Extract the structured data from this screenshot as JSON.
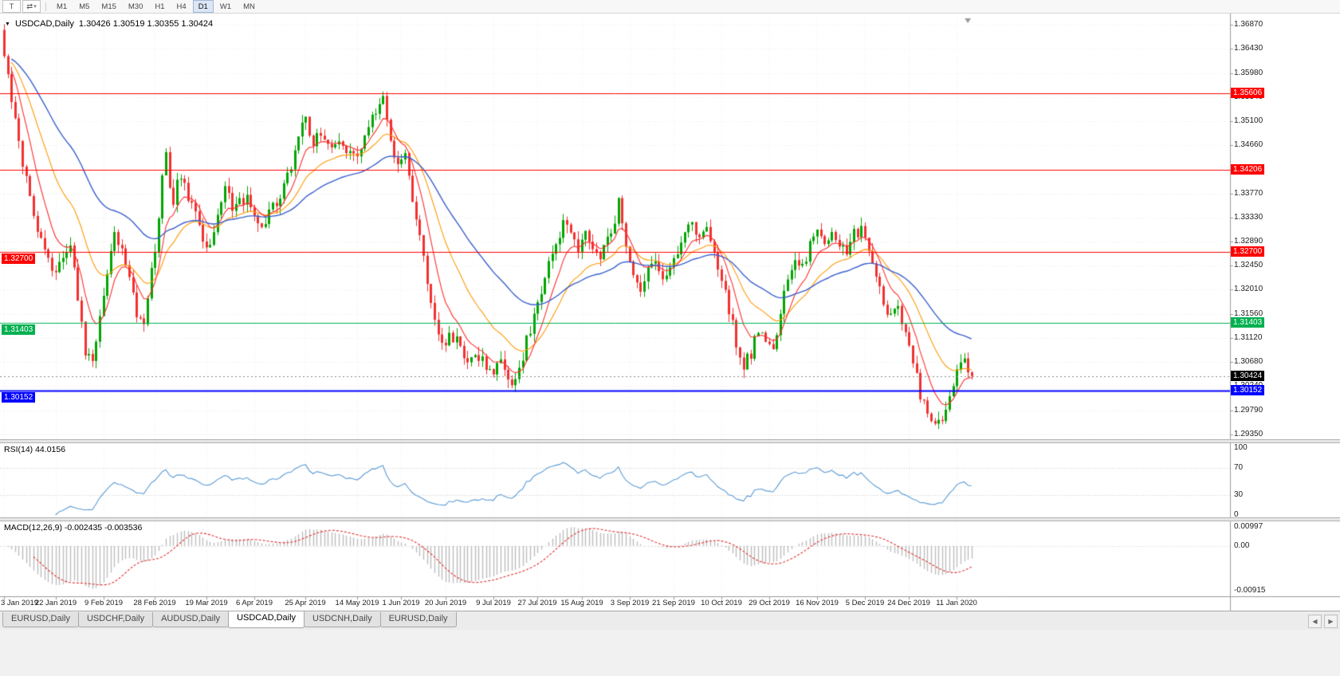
{
  "toolbar": {
    "tool_buttons": [
      {
        "label": "T"
      },
      {
        "label": "⇄"
      }
    ],
    "dropdown_glyph": "▾",
    "timeframes": [
      "M1",
      "M5",
      "M15",
      "M30",
      "H1",
      "H4",
      "D1",
      "W1",
      "MN"
    ],
    "active_timeframe": "D1"
  },
  "header": {
    "collapse_glyph": "▼",
    "symbol": "USDCAD,Daily",
    "ohlc": "1.30426 1.30519 1.30355 1.30424"
  },
  "price_axis": {
    "ticks": [
      "1.36870",
      "1.36430",
      "1.35980",
      "1.35540",
      "1.35100",
      "1.34660",
      "1.33770",
      "1.33330",
      "1.32890",
      "1.32450",
      "1.32010",
      "1.31560",
      "1.31120",
      "1.30680",
      "1.30240",
      "1.29790",
      "1.29350"
    ],
    "top_value": 1.3687,
    "bottom_value": 1.2935
  },
  "date_axis": {
    "ticks": [
      {
        "label": "3 Jan 2019",
        "index": 0
      },
      {
        "label": "22 Jan 2019",
        "index": 14
      },
      {
        "label": "9 Feb 2019",
        "index": 27
      },
      {
        "label": "28 Feb 2019",
        "index": 41
      },
      {
        "label": "19 Mar 2019",
        "index": 55
      },
      {
        "label": "6 Apr 2019",
        "index": 68
      },
      {
        "label": "25 Apr 2019",
        "index": 82
      },
      {
        "label": "14 May 2019",
        "index": 96
      },
      {
        "label": "1 Jun 2019",
        "index": 108
      },
      {
        "label": "20 Jun 2019",
        "index": 120
      },
      {
        "label": "9 Jul 2019",
        "index": 133
      },
      {
        "label": "27 Jul 2019",
        "index": 145
      },
      {
        "label": "15 Aug 2019",
        "index": 157
      },
      {
        "label": "3 Sep 2019",
        "index": 170
      },
      {
        "label": "21 Sep 2019",
        "index": 182
      },
      {
        "label": "10 Oct 2019",
        "index": 195
      },
      {
        "label": "29 Oct 2019",
        "index": 208
      },
      {
        "label": "16 Nov 2019",
        "index": 221
      },
      {
        "label": "5 Dec 2019",
        "index": 234
      },
      {
        "label": "24 Dec 2019",
        "index": 246
      },
      {
        "label": "11 Jan 2020",
        "index": 259
      }
    ]
  },
  "indicators": {
    "rsi": {
      "title": "RSI(14) 44.0156",
      "period": 14,
      "current_value": 44.0156,
      "axis_labels": [
        {
          "text": "100",
          "value": 100
        },
        {
          "text": "70",
          "value": 70
        },
        {
          "text": "30",
          "value": 30
        },
        {
          "text": "0",
          "value": 0
        }
      ],
      "levels": [
        70,
        30
      ],
      "line_color": "#5b9bd5"
    },
    "macd": {
      "title": "MACD(12,26,9) -0.002435 -0.003536",
      "fast": 12,
      "slow": 26,
      "signal": 9,
      "main_value": -0.002435,
      "signal_value": -0.003536,
      "axis_top_label": "0.00997",
      "axis_zero_label": "0.00",
      "axis_bottom_label": "-0.00915",
      "histogram_color": "#bdbdbd",
      "signal_color": "#e03030"
    }
  },
  "chart_data": {
    "type": "candlestick",
    "symbol": "USDCAD",
    "timeframe": "Daily",
    "current_price": 1.30424,
    "current_ohlc": {
      "open": 1.30426,
      "high": 1.30519,
      "low": 1.30355,
      "close": 1.30424
    },
    "candle_count": 264,
    "up_color": "#00a400",
    "down_color": "#f23030",
    "close_waypoints": [
      [
        0,
        1.3635
      ],
      [
        2,
        1.355
      ],
      [
        4,
        1.3465
      ],
      [
        6,
        1.34
      ],
      [
        8,
        1.333
      ],
      [
        10,
        1.329
      ],
      [
        12,
        1.325
      ],
      [
        14,
        1.3228
      ],
      [
        16,
        1.3262
      ],
      [
        18,
        1.329
      ],
      [
        20,
        1.318
      ],
      [
        22,
        1.309
      ],
      [
        24,
        1.3065
      ],
      [
        26,
        1.315
      ],
      [
        28,
        1.324
      ],
      [
        30,
        1.33
      ],
      [
        32,
        1.327
      ],
      [
        34,
        1.3215
      ],
      [
        36,
        1.316
      ],
      [
        38,
        1.3145
      ],
      [
        40,
        1.323
      ],
      [
        42,
        1.333
      ],
      [
        43,
        1.342
      ],
      [
        44,
        1.3445
      ],
      [
        45,
        1.339
      ],
      [
        46,
        1.336
      ],
      [
        47,
        1.34
      ],
      [
        48,
        1.3415
      ],
      [
        50,
        1.337
      ],
      [
        52,
        1.334
      ],
      [
        54,
        1.33
      ],
      [
        56,
        1.3272
      ],
      [
        58,
        1.333
      ],
      [
        60,
        1.339
      ],
      [
        62,
        1.335
      ],
      [
        64,
        1.336
      ],
      [
        66,
        1.3375
      ],
      [
        68,
        1.333
      ],
      [
        70,
        1.331
      ],
      [
        72,
        1.334
      ],
      [
        74,
        1.3365
      ],
      [
        76,
        1.339
      ],
      [
        78,
        1.343
      ],
      [
        80,
        1.348
      ],
      [
        82,
        1.3515
      ],
      [
        84,
        1.347
      ],
      [
        86,
        1.349
      ],
      [
        88,
        1.346
      ],
      [
        90,
        1.3478
      ],
      [
        92,
        1.3455
      ],
      [
        94,
        1.3465
      ],
      [
        96,
        1.344
      ],
      [
        98,
        1.3475
      ],
      [
        100,
        1.3515
      ],
      [
        102,
        1.3545
      ],
      [
        103,
        1.355
      ],
      [
        105,
        1.347
      ],
      [
        107,
        1.343
      ],
      [
        109,
        1.3445
      ],
      [
        111,
        1.337
      ],
      [
        113,
        1.33
      ],
      [
        115,
        1.322
      ],
      [
        117,
        1.315
      ],
      [
        119,
        1.31
      ],
      [
        121,
        1.3115
      ],
      [
        123,
        1.3105
      ],
      [
        126,
        1.306
      ],
      [
        129,
        1.308
      ],
      [
        132,
        1.305
      ],
      [
        135,
        1.3068
      ],
      [
        138,
        1.3035
      ],
      [
        140,
        1.3052
      ],
      [
        142,
        1.311
      ],
      [
        144,
        1.315
      ],
      [
        146,
        1.32
      ],
      [
        148,
        1.3245
      ],
      [
        150,
        1.3285
      ],
      [
        152,
        1.332
      ],
      [
        154,
        1.33
      ],
      [
        156,
        1.3265
      ],
      [
        158,
        1.33
      ],
      [
        160,
        1.3285
      ],
      [
        162,
        1.326
      ],
      [
        164,
        1.329
      ],
      [
        166,
        1.332
      ],
      [
        167,
        1.3365
      ],
      [
        169,
        1.3285
      ],
      [
        171,
        1.323
      ],
      [
        173,
        1.3205
      ],
      [
        175,
        1.3235
      ],
      [
        177,
        1.3255
      ],
      [
        179,
        1.3225
      ],
      [
        181,
        1.3245
      ],
      [
        183,
        1.327
      ],
      [
        185,
        1.331
      ],
      [
        187,
        1.333
      ],
      [
        189,
        1.329
      ],
      [
        191,
        1.332
      ],
      [
        193,
        1.327
      ],
      [
        195,
        1.3225
      ],
      [
        197,
        1.3165
      ],
      [
        199,
        1.3105
      ],
      [
        201,
        1.3065
      ],
      [
        203,
        1.3085
      ],
      [
        205,
        1.313
      ],
      [
        207,
        1.3105
      ],
      [
        209,
        1.309
      ],
      [
        211,
        1.316
      ],
      [
        213,
        1.322
      ],
      [
        215,
        1.3255
      ],
      [
        217,
        1.324
      ],
      [
        219,
        1.328
      ],
      [
        221,
        1.33
      ],
      [
        223,
        1.3292
      ],
      [
        225,
        1.3312
      ],
      [
        227,
        1.329
      ],
      [
        229,
        1.3268
      ],
      [
        231,
        1.3302
      ],
      [
        233,
        1.3312
      ],
      [
        235,
        1.3275
      ],
      [
        237,
        1.3225
      ],
      [
        239,
        1.3175
      ],
      [
        241,
        1.3152
      ],
      [
        243,
        1.3168
      ],
      [
        245,
        1.3125
      ],
      [
        247,
        1.3068
      ],
      [
        249,
        1.3008
      ],
      [
        251,
        1.2975
      ],
      [
        253,
        1.2958
      ],
      [
        255,
        1.2968
      ],
      [
        257,
        1.3002
      ],
      [
        259,
        1.3058
      ],
      [
        261,
        1.3072
      ],
      [
        262,
        1.305
      ],
      [
        263,
        1.30424
      ]
    ],
    "moving_averages": [
      {
        "period": 8,
        "color": "#ff2d2d"
      },
      {
        "period": 20,
        "color": "#ff9800"
      },
      {
        "period": 45,
        "color": "#3a5fcd"
      }
    ],
    "horizontal_lines": [
      {
        "price": 1.35606,
        "label": "1.35606",
        "color": "#ff0000",
        "width": 1,
        "left_label": false
      },
      {
        "price": 1.34206,
        "label": "1.34206",
        "color": "#ff0000",
        "width": 1,
        "left_label": false
      },
      {
        "price": 1.327,
        "label": "1.32700",
        "color": "#ff0000",
        "width": 1,
        "left_label": true
      },
      {
        "price": 1.31403,
        "label": "1.31403",
        "color": "#00b050",
        "width": 1,
        "left_label": true
      },
      {
        "price": 1.30152,
        "label": "1.30152",
        "color": "#0000ff",
        "width": 2,
        "left_label": true
      }
    ],
    "current_price_marker": {
      "label": "1.30424",
      "bg_color": "#000000"
    },
    "shift_marker_index": 262
  },
  "tabs": {
    "items": [
      "EURUSD,Daily",
      "USDCHF,Daily",
      "AUDUSD,Daily",
      "USDCAD,Daily",
      "USDCNH,Daily",
      "EURUSD,Daily"
    ],
    "active_index": 3
  },
  "tab_scroll": {
    "left": "◀",
    "right": "▶"
  }
}
